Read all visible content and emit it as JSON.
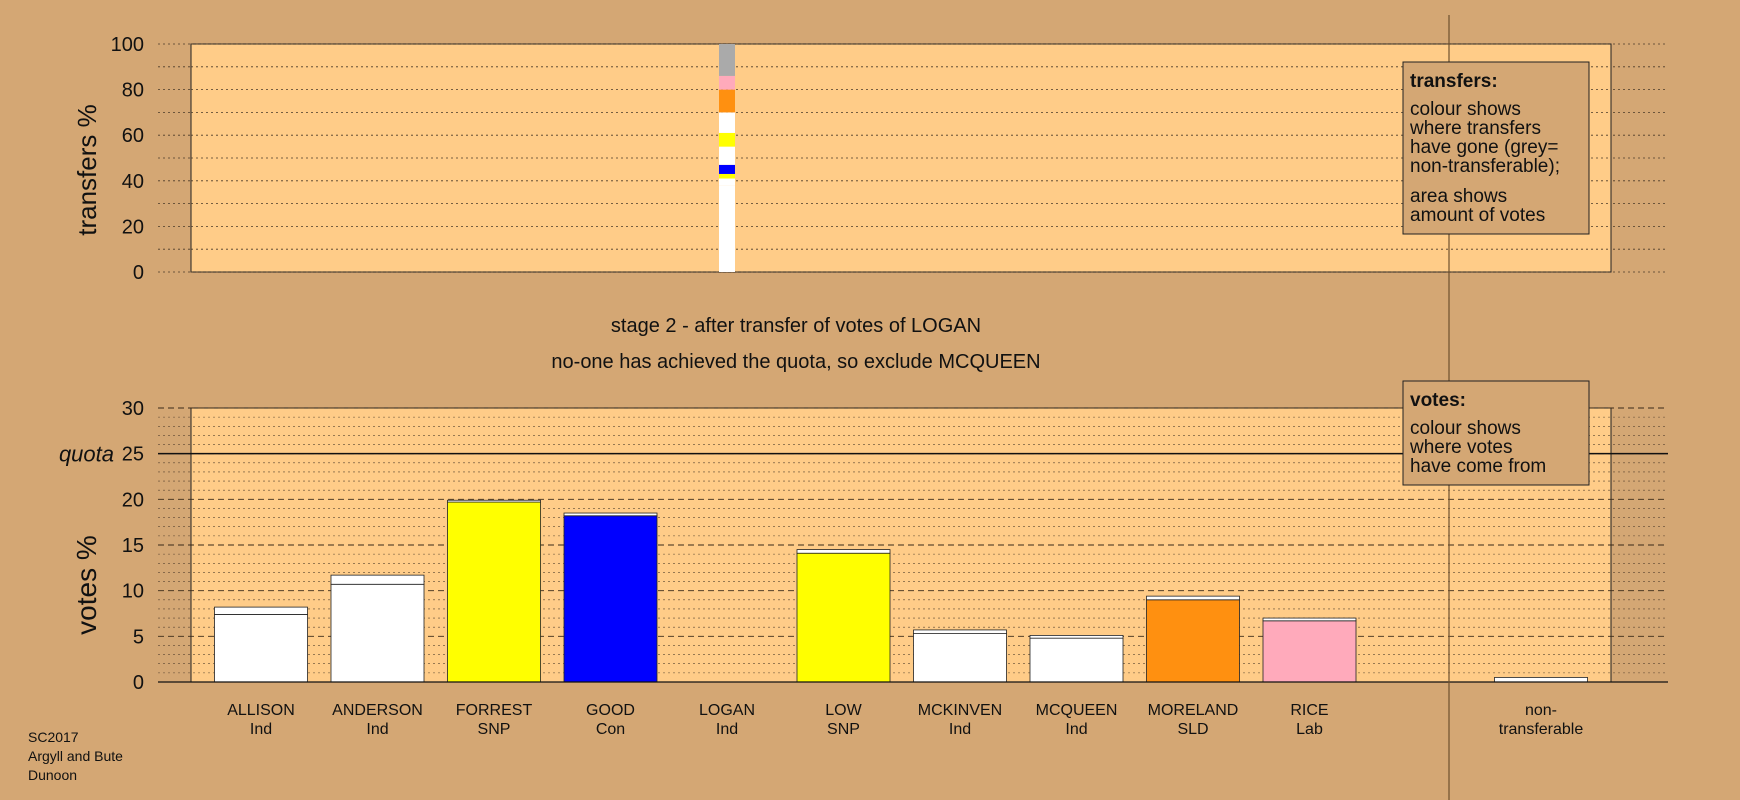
{
  "colors": {
    "background": "#d4a774",
    "plot_area": "#ffcc88",
    "Ind": "#ffffff",
    "SNP": "#ffff00",
    "Con": "#0000ff",
    "SLD": "#ff9010",
    "Lab": "#ffaabb",
    "non_transferable": "#aaaaaa"
  },
  "header": {
    "stage_title": "stage 2 - after transfer of votes of LOGAN",
    "stage_note": "no-one has achieved the quota, so exclude MCQUEEN"
  },
  "footer": {
    "line1": "SC2017",
    "line2": "Argyll and Bute",
    "line3": "Dunoon"
  },
  "legends": {
    "transfers": {
      "title": "transfers:",
      "lines": [
        "colour shows",
        "where transfers",
        "have gone (grey=",
        "non-transferable);",
        "area shows",
        "amount of votes"
      ]
    },
    "votes": {
      "title": "votes:",
      "lines": [
        "colour shows",
        "where votes",
        "have come from"
      ]
    }
  },
  "chart_data": [
    {
      "type": "bar",
      "name": "transfers",
      "ylabel": "transfers %",
      "ylim": [
        0,
        100
      ],
      "yticks": [
        0,
        20,
        40,
        60,
        80,
        100
      ],
      "grid": true,
      "source_candidate": "LOGAN",
      "segments": [
        {
          "party": "Ind",
          "candidate": "ALLISON",
          "from": 0,
          "to": 38,
          "color": "#ffffff"
        },
        {
          "party": "Ind",
          "candidate": "ANDERSON",
          "from": 38,
          "to": 41,
          "color": "#ffffff"
        },
        {
          "party": "SNP",
          "candidate": "FORREST",
          "from": 41,
          "to": 43,
          "color": "#ffff00"
        },
        {
          "party": "Con",
          "candidate": "GOOD",
          "from": 43,
          "to": 47,
          "color": "#0000ff"
        },
        {
          "party": "Ind",
          "candidate": "MCKINVEN",
          "from": 47,
          "to": 55,
          "color": "#ffffff"
        },
        {
          "party": "SNP",
          "candidate": "LOW",
          "from": 55,
          "to": 61,
          "color": "#ffff00"
        },
        {
          "party": "Ind",
          "candidate": "MCQUEEN",
          "from": 61,
          "to": 70,
          "color": "#ffffff"
        },
        {
          "party": "SLD",
          "candidate": "MORELAND",
          "from": 70,
          "to": 80,
          "color": "#ff9010"
        },
        {
          "party": "Lab",
          "candidate": "RICE",
          "from": 80,
          "to": 86,
          "color": "#ffaabb"
        },
        {
          "party": "non-transferable",
          "candidate": "non-transferable",
          "from": 86,
          "to": 100,
          "color": "#aaaaaa"
        }
      ]
    },
    {
      "type": "bar",
      "name": "votes",
      "ylabel": "votes %",
      "ylim": [
        0,
        30
      ],
      "yticks": [
        0,
        5,
        10,
        15,
        20,
        25,
        30
      ],
      "quota": 25,
      "quota_label": "quota",
      "grid": true,
      "candidates": [
        {
          "name": "ALLISON",
          "party": "Ind",
          "color": "#ffffff",
          "base": 7.4,
          "transfer": 0.8
        },
        {
          "name": "ANDERSON",
          "party": "Ind",
          "color": "#ffffff",
          "base": 10.7,
          "transfer": 1.0
        },
        {
          "name": "FORREST",
          "party": "SNP",
          "color": "#ffff00",
          "base": 19.7,
          "transfer": 0.2
        },
        {
          "name": "GOOD",
          "party": "Con",
          "color": "#0000ff",
          "base": 18.2,
          "transfer": 0.3
        },
        {
          "name": "LOGAN",
          "party": "Ind",
          "color": "#ffffff",
          "base": 0,
          "transfer": 0
        },
        {
          "name": "LOW",
          "party": "SNP",
          "color": "#ffff00",
          "base": 14.1,
          "transfer": 0.4
        },
        {
          "name": "MCKINVEN",
          "party": "Ind",
          "color": "#ffffff",
          "base": 5.3,
          "transfer": 0.4
        },
        {
          "name": "MCQUEEN",
          "party": "Ind",
          "color": "#ffffff",
          "base": 4.8,
          "transfer": 0.3
        },
        {
          "name": "MORELAND",
          "party": "SLD",
          "color": "#ff9010",
          "base": 9.0,
          "transfer": 0.4
        },
        {
          "name": "RICE",
          "party": "Lab",
          "color": "#ffaabb",
          "base": 6.7,
          "transfer": 0.3
        }
      ],
      "non_transferable": {
        "label_line1": "non-",
        "label_line2": "transferable",
        "value": 0.5,
        "color": "#ffffff"
      }
    }
  ]
}
